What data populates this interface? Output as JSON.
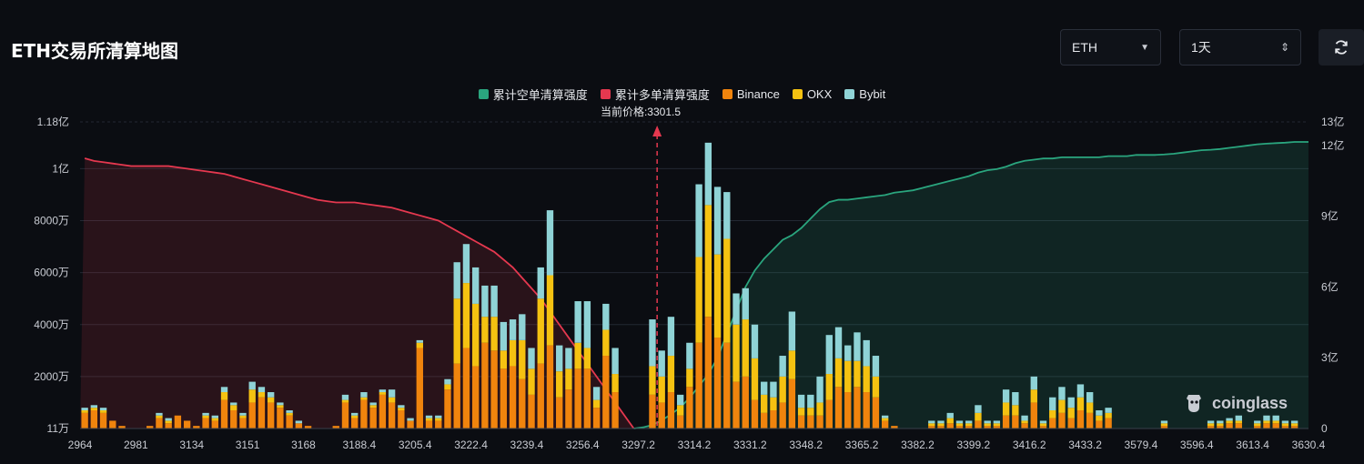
{
  "page": {
    "title": "ETH交易所清算地图",
    "coin_select": {
      "value": "ETH"
    },
    "range_select": {
      "value": "1天"
    },
    "refresh_icon": "refresh-icon",
    "watermark": "coinglass"
  },
  "chart_data": {
    "type": "bar",
    "current_price_label": "当前价格:3301.5",
    "current_price": 3301.5,
    "legend": [
      {
        "name": "累计空单清算强度",
        "color": "#2aa57e"
      },
      {
        "name": "累计多单清算强度",
        "color": "#e5384f"
      },
      {
        "name": "Binance",
        "color": "#f0840d"
      },
      {
        "name": "OKX",
        "color": "#f5c211"
      },
      {
        "name": "Bybit",
        "color": "#8fd3d6"
      }
    ],
    "x_tick_labels": [
      "2964",
      "2981",
      "3134",
      "3151",
      "3168",
      "3188.4",
      "3205.4",
      "3222.4",
      "3239.4",
      "3256.4",
      "3297.2",
      "3314.2",
      "3331.2",
      "3348.2",
      "3365.2",
      "3382.2",
      "3399.2",
      "3416.2",
      "3433.2",
      "3579.4",
      "3596.4",
      "3613.4",
      "3630.4"
    ],
    "y_left": {
      "ticks": [
        "11万",
        "2000万",
        "4000万",
        "6000万",
        "8000万",
        "1亿",
        "1.18亿"
      ],
      "values": [
        0.011,
        20,
        40,
        60,
        80,
        100,
        118
      ],
      "unit": "百万"
    },
    "y_right": {
      "ticks": [
        "0",
        "3亿",
        "6亿",
        "9亿",
        "12亿",
        "13亿"
      ],
      "values": [
        0,
        3,
        6,
        9,
        12,
        13
      ],
      "unit": "亿"
    },
    "bars_binance": [
      6,
      7,
      6,
      3,
      1,
      0,
      0,
      1,
      4,
      2,
      5,
      3,
      1,
      4,
      3,
      11,
      7,
      4,
      10,
      12,
      10,
      8,
      5,
      2,
      1,
      0,
      0,
      1,
      10,
      4,
      11,
      8,
      13,
      10,
      7,
      3,
      31,
      3,
      3,
      15,
      25,
      31,
      24,
      33,
      30,
      23,
      24,
      19,
      13,
      25,
      32,
      12,
      15,
      23,
      23,
      8,
      28,
      14,
      0,
      0,
      0,
      13,
      10,
      14,
      5,
      16,
      33,
      43,
      35,
      33,
      18,
      20,
      11,
      6,
      7,
      10,
      19,
      5,
      5,
      5,
      11,
      16,
      14,
      16,
      14,
      12,
      3,
      1,
      0,
      0,
      0,
      1,
      1,
      2,
      1,
      1,
      3,
      1,
      1,
      5,
      5,
      2,
      10,
      1,
      4,
      6,
      4,
      7,
      6,
      3,
      4,
      0,
      0,
      0,
      0,
      0,
      1,
      0,
      0,
      0,
      0,
      1,
      1,
      2,
      2,
      0,
      1,
      2,
      2,
      1,
      1,
      0
    ],
    "bars_okx": [
      1,
      1,
      1,
      0,
      0,
      0,
      0,
      0,
      1,
      1,
      0,
      0,
      0,
      1,
      1,
      3,
      2,
      1,
      5,
      2,
      2,
      1,
      1,
      0,
      0,
      0,
      0,
      0,
      1,
      1,
      1,
      1,
      1,
      2,
      1,
      0,
      2,
      1,
      1,
      2,
      25,
      25,
      24,
      10,
      13,
      7,
      10,
      15,
      10,
      25,
      27,
      10,
      8,
      10,
      8,
      3,
      10,
      7,
      0,
      0,
      0,
      11,
      10,
      14,
      4,
      7,
      33,
      43,
      32,
      40,
      22,
      22,
      16,
      7,
      5,
      10,
      11,
      3,
      3,
      5,
      10,
      11,
      12,
      10,
      10,
      8,
      1,
      0,
      0,
      0,
      0,
      1,
      1,
      2,
      1,
      1,
      3,
      1,
      1,
      5,
      4,
      1,
      5,
      1,
      3,
      5,
      4,
      5,
      4,
      2,
      2,
      0,
      0,
      0,
      0,
      0,
      1,
      0,
      0,
      0,
      0,
      1,
      1,
      1,
      1,
      0,
      1,
      1,
      1,
      1,
      1,
      0
    ],
    "bars_bybit": [
      1,
      1,
      1,
      0,
      0,
      0,
      0,
      0,
      1,
      1,
      0,
      0,
      0,
      1,
      1,
      2,
      1,
      1,
      3,
      2,
      2,
      1,
      1,
      1,
      0,
      0,
      0,
      0,
      2,
      1,
      2,
      1,
      1,
      3,
      1,
      1,
      1,
      1,
      1,
      2,
      14,
      15,
      14,
      12,
      12,
      11,
      8,
      10,
      8,
      12,
      25,
      10,
      8,
      16,
      18,
      5,
      10,
      10,
      0,
      0,
      0,
      18,
      10,
      15,
      4,
      10,
      28,
      24,
      26,
      18,
      12,
      12,
      13,
      5,
      6,
      8,
      15,
      5,
      5,
      10,
      15,
      12,
      6,
      11,
      10,
      8,
      1,
      0,
      0,
      0,
      0,
      1,
      1,
      2,
      1,
      1,
      3,
      1,
      1,
      5,
      5,
      2,
      5,
      1,
      5,
      5,
      4,
      5,
      4,
      2,
      2,
      0,
      0,
      0,
      0,
      0,
      1,
      0,
      0,
      0,
      0,
      1,
      1,
      1,
      2,
      0,
      1,
      2,
      2,
      1,
      1,
      0
    ],
    "short_cumulative": [
      0,
      0,
      0,
      0,
      0,
      0,
      0,
      0,
      0,
      0,
      0,
      0,
      0,
      0,
      0,
      0,
      0,
      0,
      0,
      0,
      0,
      0,
      0,
      0,
      0,
      0,
      0,
      0,
      0,
      0,
      0,
      0,
      0,
      0,
      0,
      0,
      0,
      0,
      0,
      0,
      0,
      0,
      0,
      0,
      0,
      0,
      0,
      0,
      0,
      0,
      0,
      0,
      0,
      0,
      0,
      0,
      0,
      0,
      0,
      0,
      0.05,
      0.15,
      0.35,
      0.6,
      0.9,
      1.3,
      1.8,
      2.3,
      3.0,
      4.0,
      5.0,
      6.0,
      6.7,
      7.2,
      7.6,
      8.0,
      8.2,
      8.5,
      8.9,
      9.3,
      9.6,
      9.7,
      9.7,
      9.75,
      9.8,
      9.85,
      9.9,
      10.0,
      10.05,
      10.1,
      10.2,
      10.3,
      10.4,
      10.5,
      10.6,
      10.7,
      10.85,
      10.95,
      11.0,
      11.1,
      11.25,
      11.35,
      11.4,
      11.45,
      11.45,
      11.5,
      11.5,
      11.5,
      11.5,
      11.5,
      11.55,
      11.55,
      11.55,
      11.6,
      11.6,
      11.6,
      11.62,
      11.65,
      11.7,
      11.75,
      11.8,
      11.82,
      11.85,
      11.9,
      11.95,
      12.0,
      12.05,
      12.08,
      12.1,
      12.12,
      12.15,
      12.15
    ],
    "long_cumulative": [
      104,
      103,
      102.5,
      102,
      101.5,
      101,
      101,
      101,
      101,
      101,
      100.5,
      100,
      99.5,
      99,
      98.5,
      98,
      97,
      96,
      95,
      94,
      93,
      92,
      91,
      90,
      89,
      88,
      87.5,
      87,
      87,
      87,
      86.5,
      86,
      85.5,
      85,
      84,
      83,
      82,
      81,
      80,
      78,
      76,
      74,
      72,
      70,
      68,
      65,
      62,
      58,
      54,
      50,
      45,
      40,
      35,
      30,
      25,
      20,
      15,
      10,
      5,
      0,
      0,
      0,
      0,
      0,
      0,
      0,
      0,
      0,
      0,
      0,
      0,
      0,
      0,
      0,
      0,
      0,
      0,
      0,
      0,
      0,
      0,
      0,
      0,
      0,
      0,
      0,
      0,
      0,
      0,
      0,
      0,
      0,
      0,
      0,
      0,
      0,
      0,
      0,
      0,
      0,
      0,
      0,
      0,
      0,
      0,
      0,
      0,
      0,
      0,
      0,
      0,
      0,
      0,
      0,
      0,
      0,
      0,
      0,
      0,
      0,
      0,
      0,
      0,
      0,
      0,
      0,
      0,
      0,
      0,
      0,
      0,
      0
    ]
  }
}
